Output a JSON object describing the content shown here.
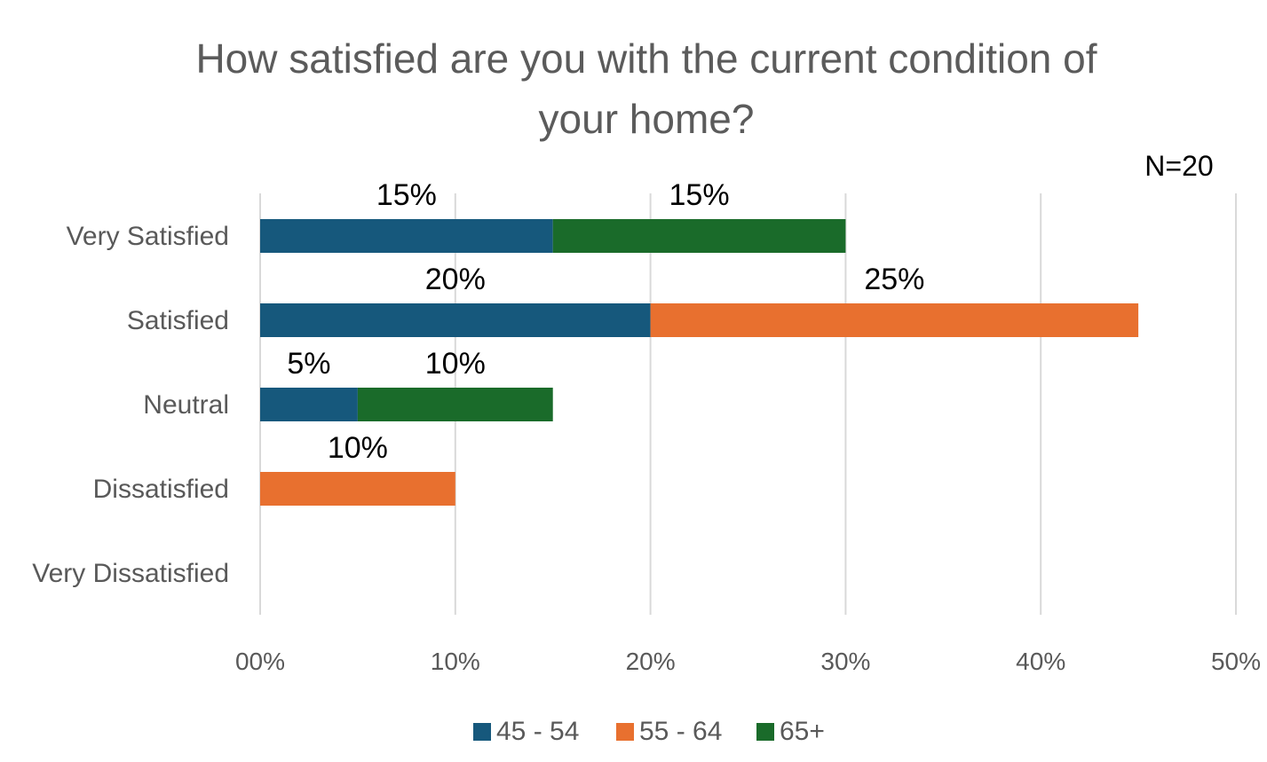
{
  "chart_data": {
    "type": "bar",
    "orientation": "horizontal",
    "stacked": true,
    "title_lines": [
      "How satisfied are you with the current condition of",
      "your home?"
    ],
    "note": "N=20",
    "categories": [
      "Very Satisfied",
      "Satisfied",
      "Neutral",
      "Dissatisfied",
      "Very Dissatisfied"
    ],
    "series": [
      {
        "name": "45 - 54",
        "color": "#16587c",
        "values": [
          15,
          20,
          5,
          0,
          0
        ]
      },
      {
        "name": "55 - 64",
        "color": "#e8702f",
        "values": [
          0,
          25,
          0,
          10,
          0
        ]
      },
      {
        "name": "65+",
        "color": "#1a6b2a",
        "values": [
          15,
          0,
          10,
          0,
          0
        ]
      }
    ],
    "data_labels": [
      {
        "category": "Very Satisfied",
        "series": "45 - 54",
        "text": "15%"
      },
      {
        "category": "Very Satisfied",
        "series": "65+",
        "text": "15%"
      },
      {
        "category": "Satisfied",
        "series": "45 - 54",
        "text": "20%"
      },
      {
        "category": "Satisfied",
        "series": "55 - 64",
        "text": "25%"
      },
      {
        "category": "Neutral",
        "series": "45 - 54",
        "text": "5%"
      },
      {
        "category": "Neutral",
        "series": "65+",
        "text": "10%"
      },
      {
        "category": "Dissatisfied",
        "series": "55 - 64",
        "text": "10%"
      }
    ],
    "xlim": [
      0,
      50
    ],
    "x_ticks": [
      0,
      10,
      20,
      30,
      40,
      50
    ],
    "x_tick_labels": [
      "00%",
      "10%",
      "20%",
      "30%",
      "40%",
      "50%"
    ],
    "xlabel": "",
    "ylabel": "",
    "grid": "vertical",
    "legend_position": "bottom"
  }
}
